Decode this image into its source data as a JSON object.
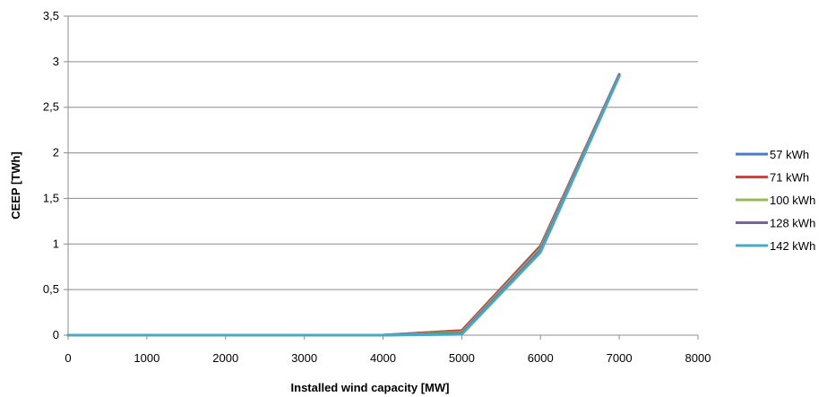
{
  "chart_data": {
    "type": "line",
    "xlabel": "Installed wind capacity  [MW]",
    "ylabel": "CEEP [TWh]",
    "xlim": [
      0,
      8000
    ],
    "ylim": [
      0,
      3.5
    ],
    "x_ticks": [
      "0",
      "1000",
      "2000",
      "3000",
      "4000",
      "5000",
      "6000",
      "7000",
      "8000"
    ],
    "y_ticks": [
      "0",
      "0,5",
      "1",
      "1,5",
      "2",
      "2,5",
      "3",
      "3,5"
    ],
    "grid": true,
    "legend_position": "right",
    "x": [
      0,
      1000,
      2000,
      3000,
      4000,
      5000,
      6000,
      7000
    ],
    "series": [
      {
        "name": "57 kWh",
        "color": "#4a7ebb",
        "values": [
          0,
          0,
          0,
          0,
          0,
          0.05,
          0.98,
          2.86
        ]
      },
      {
        "name": "71 kWh",
        "color": "#be4b48",
        "values": [
          0,
          0,
          0,
          0,
          0,
          0.05,
          0.97,
          2.86
        ]
      },
      {
        "name": "100 kWh",
        "color": "#98b954",
        "values": [
          0,
          0,
          0,
          0,
          0,
          0.03,
          0.95,
          2.85
        ]
      },
      {
        "name": "128 kWh",
        "color": "#7d60a0",
        "values": [
          0,
          0,
          0,
          0,
          0,
          0.02,
          0.93,
          2.85
        ]
      },
      {
        "name": "142 kWh",
        "color": "#46aac5",
        "values": [
          0,
          0,
          0,
          0,
          0,
          0.01,
          0.91,
          2.84
        ]
      }
    ]
  }
}
